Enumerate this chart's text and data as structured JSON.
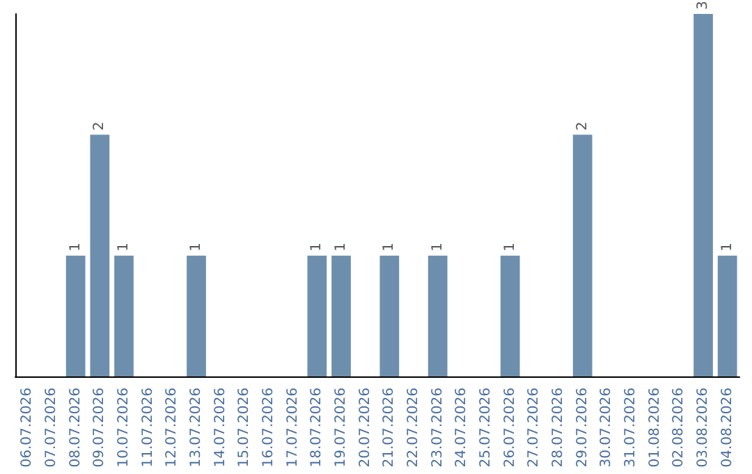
{
  "chart_data": {
    "type": "bar",
    "categories": [
      "06.07.2026",
      "07.07.2026",
      "08.07.2026",
      "09.07.2026",
      "10.07.2026",
      "11.07.2026",
      "12.07.2026",
      "13.07.2026",
      "14.07.2026",
      "15.07.2026",
      "16.07.2026",
      "17.07.2026",
      "18.07.2026",
      "19.07.2026",
      "20.07.2026",
      "21.07.2026",
      "22.07.2026",
      "23.07.2026",
      "24.07.2026",
      "25.07.2026",
      "26.07.2026",
      "27.07.2026",
      "28.07.2026",
      "29.07.2026",
      "30.07.2026",
      "31.07.2026",
      "01.08.2026",
      "02.08.2026",
      "03.08.2026",
      "04.08.2026"
    ],
    "values": [
      0,
      0,
      1,
      2,
      1,
      0,
      0,
      1,
      0,
      0,
      0,
      0,
      1,
      1,
      0,
      1,
      0,
      1,
      0,
      0,
      1,
      0,
      0,
      2,
      0,
      0,
      0,
      0,
      3,
      1
    ],
    "value_labels": [
      null,
      null,
      "1",
      "2",
      "1",
      null,
      null,
      "1",
      null,
      null,
      null,
      null,
      "1",
      "1",
      null,
      "1",
      null,
      "1",
      null,
      null,
      "1",
      null,
      null,
      "2",
      null,
      null,
      null,
      null,
      "3",
      "1"
    ],
    "color": "#6d8fad",
    "grid": false
  }
}
